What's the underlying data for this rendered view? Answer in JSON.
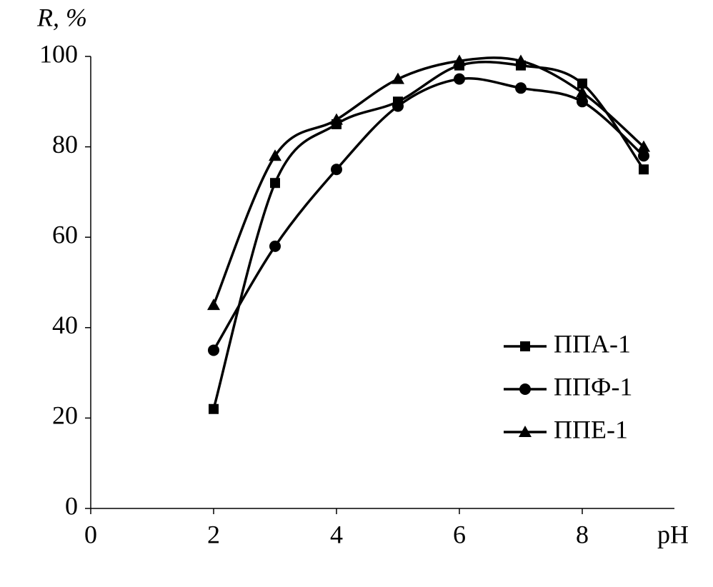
{
  "chart_data": {
    "type": "line",
    "x_label": "pH",
    "y_label": "R, %",
    "x": [
      2,
      3,
      4,
      5,
      6,
      7,
      8,
      9
    ],
    "series": [
      {
        "name": "ППА-1",
        "color": "#000000",
        "marker": "square",
        "values": [
          22,
          72,
          85,
          90,
          98,
          98,
          94,
          75
        ]
      },
      {
        "name": "ППФ-1",
        "color": "#000000",
        "marker": "circle",
        "values": [
          35,
          58,
          75,
          89,
          95,
          93,
          90,
          78
        ]
      },
      {
        "name": "ППЕ-1",
        "color": "#000000",
        "marker": "triangle",
        "values": [
          45,
          78,
          86,
          95,
          99,
          99,
          92,
          80
        ]
      }
    ],
    "xlim": [
      0,
      9.5
    ],
    "xticks": [
      0,
      2,
      4,
      6,
      8
    ],
    "ylim": [
      0,
      100
    ],
    "yticks": [
      0,
      20,
      40,
      60,
      80,
      100
    ],
    "smooth": true,
    "legend": "lower-right"
  }
}
